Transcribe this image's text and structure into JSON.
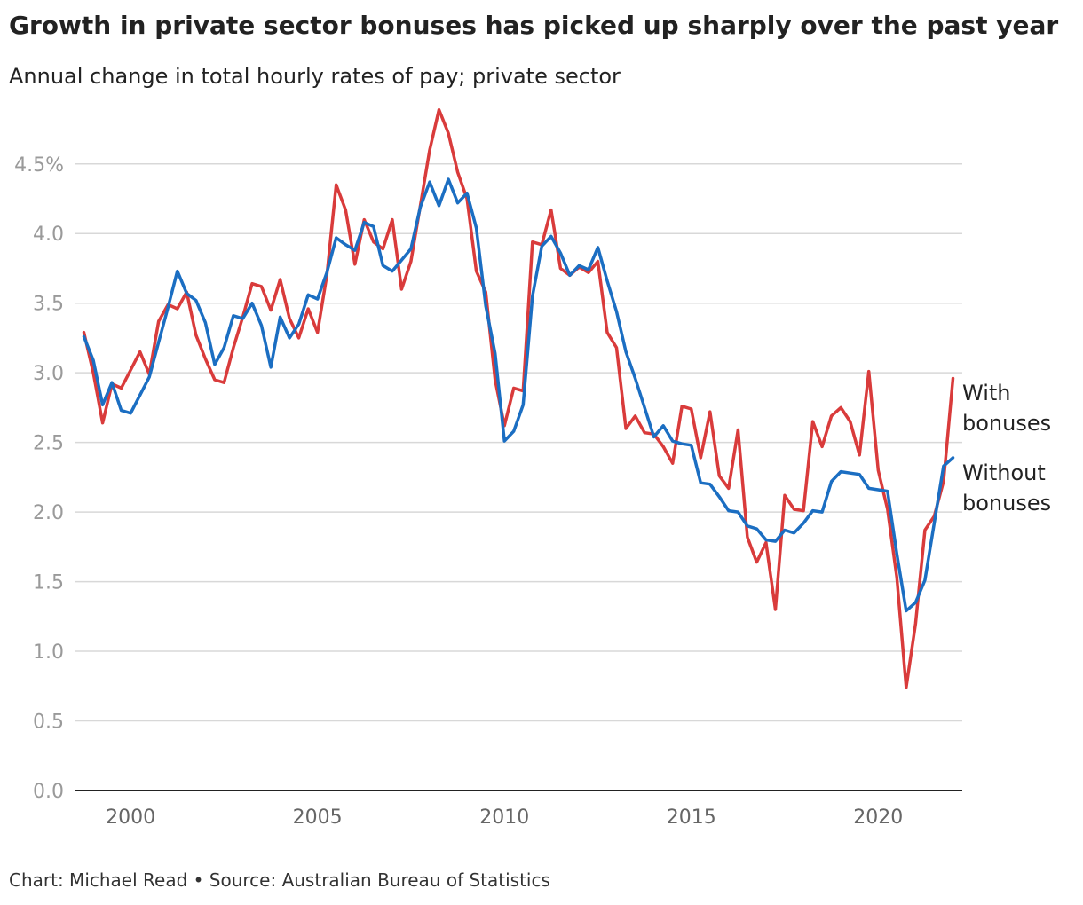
{
  "title": "Growth in private sector bonuses has picked up sharply over the past year",
  "subtitle": "Annual change in total hourly rates of pay; private sector",
  "source": "Chart: Michael Read • Source: Australian Bureau of Statistics",
  "colors": {
    "with": "#d93b3b",
    "without": "#1b6ec2",
    "grid": "#d8d8d8",
    "axis": "#222222"
  },
  "chart_data": {
    "type": "line",
    "xlim": [
      1998.5,
      2022.25
    ],
    "ylim": [
      0,
      4.9
    ],
    "yticks": [
      {
        "value": 0.0,
        "label": "0.0"
      },
      {
        "value": 0.5,
        "label": "0.5"
      },
      {
        "value": 1.0,
        "label": "1.0"
      },
      {
        "value": 1.5,
        "label": "1.5"
      },
      {
        "value": 2.0,
        "label": "2.0"
      },
      {
        "value": 2.5,
        "label": "2.5"
      },
      {
        "value": 3.0,
        "label": "3.0"
      },
      {
        "value": 3.5,
        "label": "3.5"
      },
      {
        "value": 4.0,
        "label": "4.0"
      },
      {
        "value": 4.5,
        "label": "4.5%"
      }
    ],
    "xticks": [
      {
        "value": 2000,
        "label": "2000"
      },
      {
        "value": 2005,
        "label": "2005"
      },
      {
        "value": 2010,
        "label": "2010"
      },
      {
        "value": 2015,
        "label": "2015"
      },
      {
        "value": 2020,
        "label": "2020"
      }
    ],
    "grid": true,
    "series": [
      {
        "name": "With bonuses",
        "label_lines": [
          "With",
          "bonuses"
        ],
        "color": "#d93b3b",
        "x": [
          1998.75,
          1999.0,
          1999.25,
          1999.5,
          1999.75,
          2000.0,
          2000.25,
          2000.5,
          2000.75,
          2001.0,
          2001.25,
          2001.5,
          2001.75,
          2002.0,
          2002.25,
          2002.5,
          2002.75,
          2003.0,
          2003.25,
          2003.5,
          2003.75,
          2004.0,
          2004.25,
          2004.5,
          2004.75,
          2005.0,
          2005.25,
          2005.5,
          2005.75,
          2006.0,
          2006.25,
          2006.5,
          2006.75,
          2007.0,
          2007.25,
          2007.5,
          2007.75,
          2008.0,
          2008.25,
          2008.5,
          2008.75,
          2009.0,
          2009.25,
          2009.5,
          2009.75,
          2010.0,
          2010.25,
          2010.5,
          2010.75,
          2011.0,
          2011.25,
          2011.5,
          2011.75,
          2012.0,
          2012.25,
          2012.5,
          2012.75,
          2013.0,
          2013.25,
          2013.5,
          2013.75,
          2014.0,
          2014.25,
          2014.5,
          2014.75,
          2015.0,
          2015.25,
          2015.5,
          2015.75,
          2016.0,
          2016.25,
          2016.5,
          2016.75,
          2017.0,
          2017.25,
          2017.5,
          2017.75,
          2018.0,
          2018.25,
          2018.5,
          2018.75,
          2019.0,
          2019.25,
          2019.5,
          2019.75,
          2020.0,
          2020.25,
          2020.5,
          2020.75,
          2021.0,
          2021.25,
          2021.5,
          2021.75,
          2022.0
        ],
        "values": [
          3.29,
          3.0,
          2.64,
          2.92,
          2.89,
          3.02,
          3.15,
          2.99,
          3.37,
          3.49,
          3.46,
          3.58,
          3.27,
          3.1,
          2.95,
          2.93,
          3.18,
          3.4,
          3.64,
          3.62,
          3.45,
          3.67,
          3.39,
          3.25,
          3.46,
          3.29,
          3.7,
          4.35,
          4.17,
          3.78,
          4.1,
          3.94,
          3.89,
          4.1,
          3.6,
          3.8,
          4.2,
          4.6,
          4.89,
          4.72,
          4.44,
          4.25,
          3.73,
          3.58,
          2.95,
          2.62,
          2.89,
          2.87,
          3.94,
          3.92,
          4.17,
          3.75,
          3.7,
          3.76,
          3.72,
          3.8,
          3.29,
          3.18,
          2.6,
          2.69,
          2.57,
          2.56,
          2.47,
          2.35,
          2.76,
          2.74,
          2.39,
          2.72,
          2.26,
          2.17,
          2.59,
          1.82,
          1.64,
          1.78,
          1.3,
          2.12,
          2.02,
          2.01,
          2.65,
          2.47,
          2.69,
          2.75,
          2.65,
          2.41,
          3.01,
          2.3,
          2.02,
          1.53,
          0.74,
          1.2,
          1.87,
          1.97,
          2.22,
          2.96
        ]
      },
      {
        "name": "Without bonuses",
        "label_lines": [
          "Without",
          "bonuses"
        ],
        "color": "#1b6ec2",
        "x": [
          1998.75,
          1999.0,
          1999.25,
          1999.5,
          1999.75,
          2000.0,
          2000.25,
          2000.5,
          2000.75,
          2001.0,
          2001.25,
          2001.5,
          2001.75,
          2002.0,
          2002.25,
          2002.5,
          2002.75,
          2003.0,
          2003.25,
          2003.5,
          2003.75,
          2004.0,
          2004.25,
          2004.5,
          2004.75,
          2005.0,
          2005.25,
          2005.5,
          2005.75,
          2006.0,
          2006.25,
          2006.5,
          2006.75,
          2007.0,
          2007.25,
          2007.5,
          2007.75,
          2008.0,
          2008.25,
          2008.5,
          2008.75,
          2009.0,
          2009.25,
          2009.5,
          2009.75,
          2010.0,
          2010.25,
          2010.5,
          2010.75,
          2011.0,
          2011.25,
          2011.5,
          2011.75,
          2012.0,
          2012.25,
          2012.5,
          2012.75,
          2013.0,
          2013.25,
          2013.5,
          2013.75,
          2014.0,
          2014.25,
          2014.5,
          2014.75,
          2015.0,
          2015.25,
          2015.5,
          2015.75,
          2016.0,
          2016.25,
          2016.5,
          2016.75,
          2017.0,
          2017.25,
          2017.5,
          2017.75,
          2018.0,
          2018.25,
          2018.5,
          2018.75,
          2019.0,
          2019.25,
          2019.5,
          2019.75,
          2020.0,
          2020.25,
          2020.5,
          2020.75,
          2021.0,
          2021.25,
          2021.5,
          2021.75,
          2022.0
        ],
        "values": [
          3.26,
          3.09,
          2.77,
          2.93,
          2.73,
          2.71,
          2.84,
          2.97,
          3.22,
          3.47,
          3.73,
          3.57,
          3.52,
          3.36,
          3.06,
          3.18,
          3.41,
          3.39,
          3.5,
          3.34,
          3.04,
          3.4,
          3.25,
          3.35,
          3.56,
          3.53,
          3.72,
          3.97,
          3.92,
          3.88,
          4.08,
          4.05,
          3.77,
          3.73,
          3.81,
          3.89,
          4.19,
          4.37,
          4.2,
          4.39,
          4.22,
          4.29,
          4.04,
          3.48,
          3.14,
          2.51,
          2.58,
          2.77,
          3.55,
          3.91,
          3.98,
          3.86,
          3.7,
          3.77,
          3.74,
          3.9,
          3.66,
          3.44,
          3.15,
          2.96,
          2.75,
          2.54,
          2.62,
          2.51,
          2.49,
          2.48,
          2.21,
          2.2,
          2.11,
          2.01,
          2.0,
          1.9,
          1.88,
          1.8,
          1.79,
          1.87,
          1.85,
          1.92,
          2.01,
          2.0,
          2.22,
          2.29,
          2.28,
          2.27,
          2.17,
          2.16,
          2.15,
          1.7,
          1.29,
          1.35,
          1.51,
          1.92,
          2.33,
          2.39
        ]
      }
    ]
  }
}
